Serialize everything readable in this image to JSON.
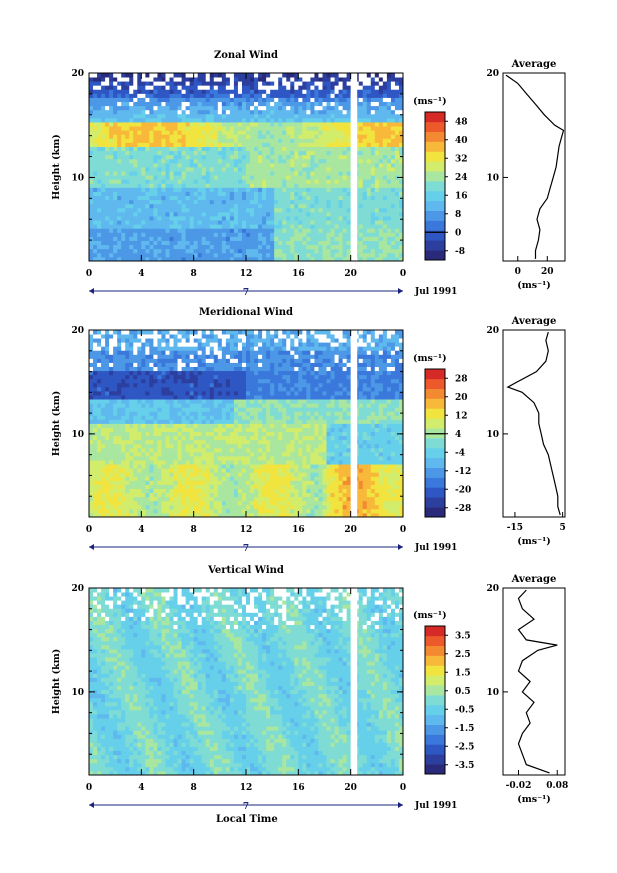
{
  "figure": {
    "x_axis_title": "Local Time",
    "date_label": "Jul 1991",
    "day_label": "7",
    "gap_color": "#ffffff",
    "colormap": [
      "#2a2a7a",
      "#2c3f9e",
      "#2f57c4",
      "#3a78dc",
      "#4c98e6",
      "#5fb8ee",
      "#66d0ea",
      "#7fdcd4",
      "#a9e6a0",
      "#d2ec6c",
      "#f2e43e",
      "#f8b83a",
      "#f38a32",
      "#ec5a2c",
      "#d62a26"
    ]
  },
  "chart_data": [
    {
      "type": "heatmap",
      "title": "Zonal Wind",
      "ylabel": "Height (km)",
      "xlabel": "Local Time",
      "x_ticks": [
        "0",
        "4",
        "8",
        "12",
        "16",
        "20",
        "0"
      ],
      "y_ticks": [
        "20",
        "10"
      ],
      "x_range_hours": [
        0,
        24
      ],
      "y_range_km": [
        2,
        20
      ],
      "data_gap_hours": [
        20.0,
        20.5
      ],
      "colorbar": {
        "unit": "(ms⁻¹)",
        "ticks": [
          "48",
          "40",
          "32",
          "24",
          "16",
          "8",
          "0",
          "-8"
        ],
        "min": -12,
        "max": 52,
        "contour_at": "0"
      },
      "average_profile": {
        "title": "Average",
        "xlabel": "(ms⁻¹)",
        "x_ticks": [
          "0",
          "20"
        ],
        "y_ticks": [
          "20",
          "10"
        ],
        "xlim": [
          -10,
          32
        ],
        "height_km": [
          2.2,
          3,
          4,
          5,
          6,
          7,
          8,
          9,
          10,
          11,
          12,
          13,
          14,
          14.5,
          15,
          16,
          17,
          18,
          19,
          19.8
        ],
        "value": [
          12,
          12,
          14,
          15,
          13,
          15,
          20,
          22,
          24,
          26,
          27,
          28,
          30,
          31,
          25,
          18,
          12,
          6,
          0,
          -8
        ]
      }
    },
    {
      "type": "heatmap",
      "title": "Meridional Wind",
      "ylabel": "Height (km)",
      "xlabel": "Local Time",
      "x_ticks": [
        "0",
        "4",
        "8",
        "12",
        "16",
        "20",
        "0"
      ],
      "y_ticks": [
        "20",
        "10"
      ],
      "x_range_hours": [
        0,
        24
      ],
      "y_range_km": [
        2,
        20
      ],
      "data_gap_hours": [
        20.0,
        20.5
      ],
      "colorbar": {
        "unit": "(ms⁻¹)",
        "ticks": [
          "28",
          "20",
          "12",
          "4",
          "-4",
          "-12",
          "-20",
          "-28"
        ],
        "min": -32,
        "max": 32,
        "contour_at": "4"
      },
      "average_profile": {
        "title": "Average",
        "xlabel": "(ms⁻¹)",
        "x_ticks": [
          "-15",
          "5"
        ],
        "y_ticks": [
          "20",
          "10"
        ],
        "xlim": [
          -20,
          6
        ],
        "height_km": [
          2.2,
          3,
          4,
          5,
          6,
          7,
          8,
          9,
          10,
          11,
          12,
          13,
          14,
          14.5,
          15,
          16,
          17,
          18,
          19,
          19.8
        ],
        "value": [
          4,
          3,
          3,
          2,
          1,
          0,
          -1,
          -3,
          -4,
          -5,
          -5,
          -7,
          -12,
          -18,
          -14,
          -6,
          -2,
          -1,
          -2,
          -1
        ]
      }
    },
    {
      "type": "heatmap",
      "title": "Vertical Wind",
      "ylabel": "Height (km)",
      "xlabel": "Local Time",
      "x_ticks": [
        "0",
        "4",
        "8",
        "12",
        "16",
        "20",
        "0"
      ],
      "y_ticks": [
        "20",
        "10"
      ],
      "x_range_hours": [
        0,
        24
      ],
      "y_range_km": [
        2,
        20
      ],
      "data_gap_hours": [
        20.0,
        20.5
      ],
      "colorbar": {
        "unit": "(ms⁻¹)",
        "ticks": [
          "3.5",
          "2.5",
          "1.5",
          "0.5",
          "-0.5",
          "-1.5",
          "-2.5",
          "-3.5"
        ],
        "min": -4.0,
        "max": 4.0
      },
      "average_profile": {
        "title": "Average",
        "xlabel": "(ms⁻¹)",
        "x_ticks": [
          "-0.02",
          "0.08"
        ],
        "y_ticks": [
          "20",
          "10"
        ],
        "xlim": [
          -0.06,
          0.1
        ],
        "height_km": [
          2.2,
          3,
          4,
          5,
          6,
          7,
          8,
          9,
          10,
          11,
          12,
          13,
          14,
          14.5,
          15,
          16,
          17,
          18,
          19,
          19.8
        ],
        "value": [
          0.06,
          0.0,
          -0.01,
          -0.02,
          -0.01,
          0.01,
          0.0,
          0.02,
          -0.01,
          0.01,
          -0.02,
          -0.01,
          0.03,
          0.08,
          0.0,
          -0.02,
          0.02,
          -0.01,
          -0.02,
          0.0
        ]
      }
    }
  ]
}
